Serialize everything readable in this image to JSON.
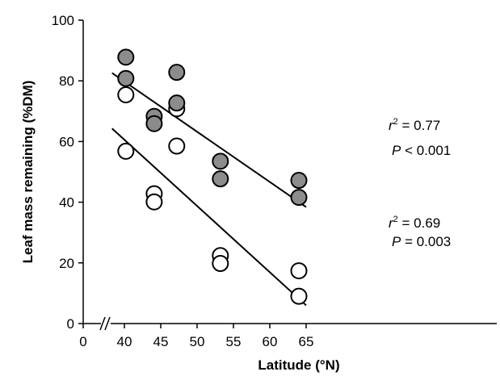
{
  "chart_data": {
    "type": "scatter",
    "xlabel": "Latitude (°N)",
    "ylabel": "Leaf mass remaining (%DM)",
    "xlim": [
      0,
      65
    ],
    "ylim": [
      0,
      100
    ],
    "x_ticks": [
      "0",
      "40",
      "45",
      "50",
      "55",
      "60",
      "65"
    ],
    "y_ticks": [
      "0",
      "20",
      "40",
      "60",
      "80",
      "100"
    ],
    "x_axis_break": true,
    "grid": false,
    "series": [
      {
        "marker": "filled",
        "color": "#8c8c8c",
        "points": [
          {
            "x": 40.2,
            "y": 87.8
          },
          {
            "x": 40.2,
            "y": 80.8
          },
          {
            "x": 44.1,
            "y": 68.3
          },
          {
            "x": 44.1,
            "y": 65.9
          },
          {
            "x": 47.2,
            "y": 82.8
          },
          {
            "x": 47.2,
            "y": 72.7
          },
          {
            "x": 53.2,
            "y": 53.5
          },
          {
            "x": 53.2,
            "y": 47.7
          },
          {
            "x": 64.0,
            "y": 47.2
          },
          {
            "x": 64.0,
            "y": 41.6
          }
        ],
        "fit": {
          "x": [
            38.3,
            65.0
          ],
          "y": [
            82.6,
            38.4
          ]
        }
      },
      {
        "marker": "open",
        "color": "#ffffff",
        "points": [
          {
            "x": 40.2,
            "y": 75.4
          },
          {
            "x": 40.2,
            "y": 56.8
          },
          {
            "x": 44.1,
            "y": 42.8
          },
          {
            "x": 44.1,
            "y": 40.1
          },
          {
            "x": 47.2,
            "y": 70.8
          },
          {
            "x": 47.2,
            "y": 58.5
          },
          {
            "x": 53.2,
            "y": 22.4
          },
          {
            "x": 53.2,
            "y": 19.8
          },
          {
            "x": 64.0,
            "y": 17.4
          },
          {
            "x": 64.0,
            "y": 9.0
          }
        ],
        "fit": {
          "x": [
            38.3,
            65.0
          ],
          "y": [
            64.3,
            6.0
          ]
        }
      }
    ],
    "annotations": [
      {
        "r_text": "r",
        "r_sup": "2",
        "r_value": " = 0.77",
        "p_text": "P",
        "p_value": " < 0.001"
      },
      {
        "r_text": "r",
        "r_sup": "2",
        "r_value": " = 0.69",
        "p_text": "P",
        "p_value": " = 0.003"
      }
    ]
  }
}
